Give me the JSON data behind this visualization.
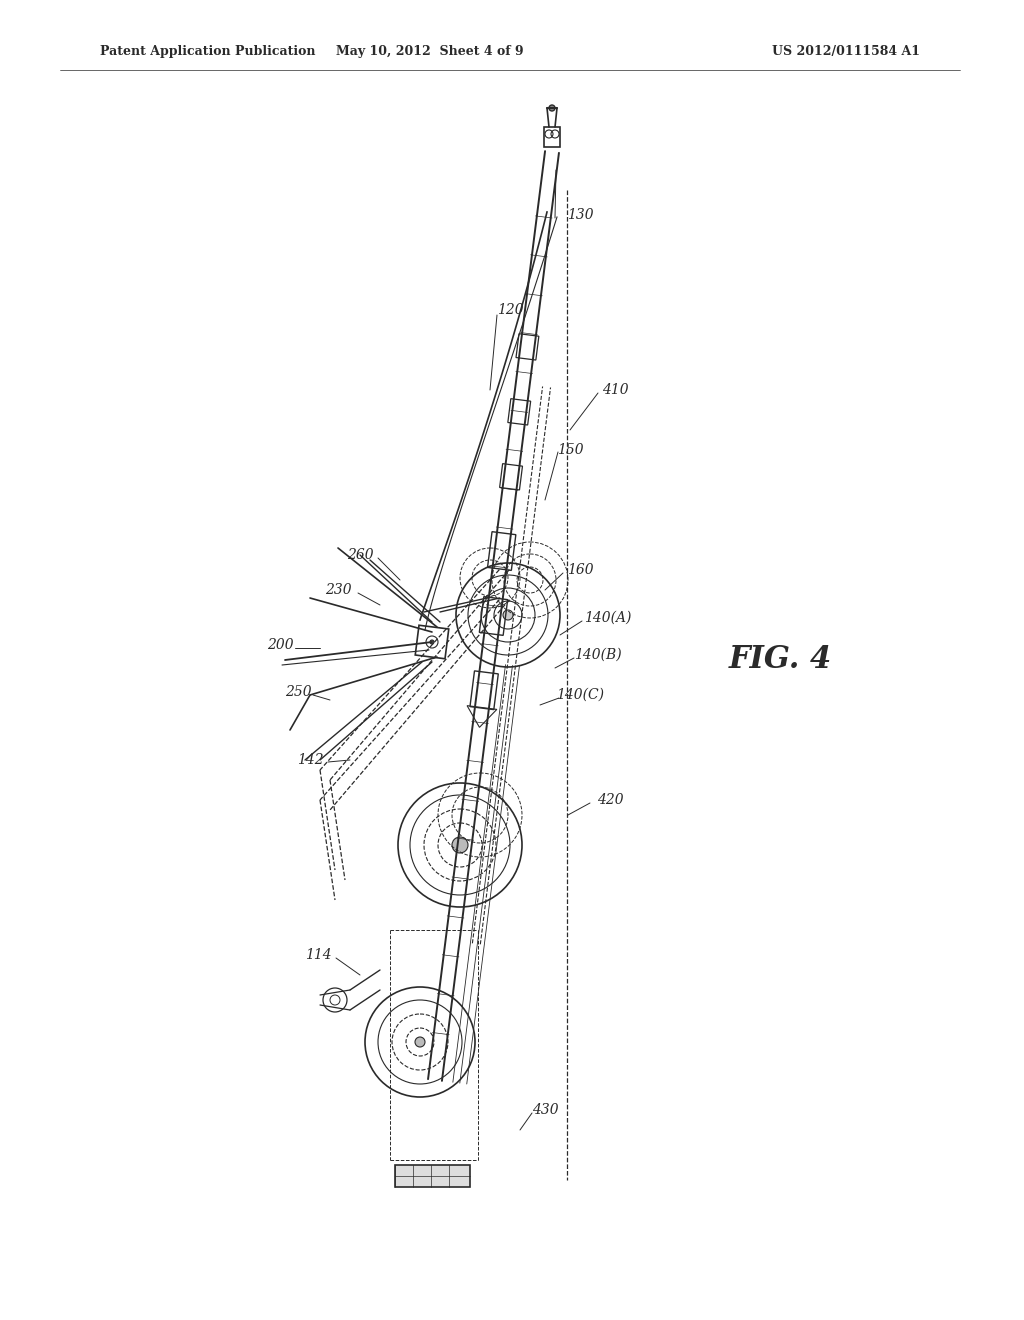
{
  "bg_color": "#ffffff",
  "line_color": "#2a2a2a",
  "header_left": "Patent Application Publication",
  "header_center": "May 10, 2012  Sheet 4 of 9",
  "header_right": "US 2012/0111584 A1",
  "fig_label": "FIG. 4",
  "header_fontsize": 9,
  "label_fontsize": 10,
  "fig_fontsize": 22
}
